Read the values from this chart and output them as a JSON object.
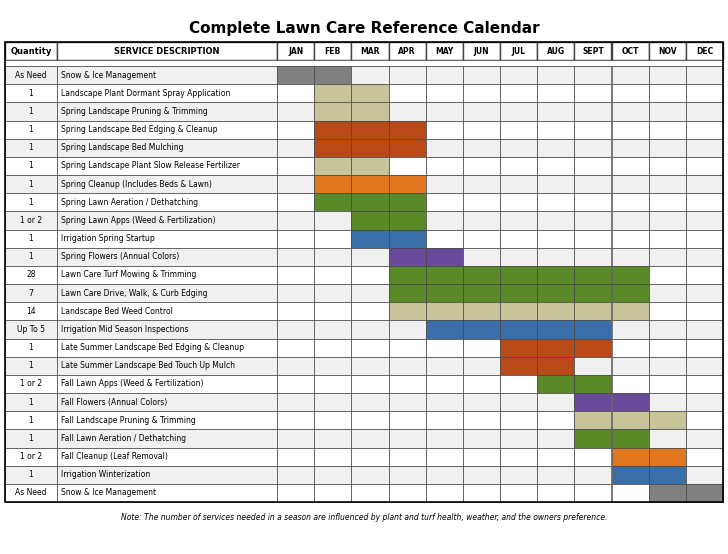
{
  "title": "Complete Lawn Care Reference Calendar",
  "note": "Note: The number of services needed in a season are influenced by plant and turf health, weather, and the owners preference.",
  "months": [
    "JAN",
    "FEB",
    "MAR",
    "APR",
    "MAY",
    "JUN",
    "JUL",
    "AUG",
    "SEPT",
    "OCT",
    "NOV",
    "DEC"
  ],
  "rows": [
    {
      "qty": "As Need",
      "desc": "Snow & Ice Management",
      "colors": {
        "JAN": "#808080",
        "FEB": "#808080"
      }
    },
    {
      "qty": "1",
      "desc": "Landscape Plant Dormant Spray Application",
      "colors": {
        "FEB": "#c8c49a",
        "MAR": "#c8c49a"
      }
    },
    {
      "qty": "1",
      "desc": "Spring Landscape Pruning & Trimming",
      "colors": {
        "FEB": "#c8c49a",
        "MAR": "#c8c49a"
      }
    },
    {
      "qty": "1",
      "desc": "Spring Landscape Bed Edging & Cleanup",
      "colors": {
        "FEB": "#b84a18",
        "MAR": "#b84a18",
        "APR": "#b84a18"
      }
    },
    {
      "qty": "1",
      "desc": "Spring Landscape Bed Mulching",
      "colors": {
        "FEB": "#b84a18",
        "MAR": "#b84a18",
        "APR": "#b84a18"
      }
    },
    {
      "qty": "1",
      "desc": "Spring Landscape Plant Slow Release Fertilizer",
      "colors": {
        "FEB": "#c8c49a",
        "MAR": "#c8c49a"
      }
    },
    {
      "qty": "1",
      "desc": "Spring Cleanup (Includes Beds & Lawn)",
      "colors": {
        "FEB": "#e07820",
        "MAR": "#e07820",
        "APR": "#e07820"
      }
    },
    {
      "qty": "1",
      "desc": "Spring Lawn Aeration / Dethatching",
      "colors": {
        "FEB": "#5a8a28",
        "MAR": "#5a8a28",
        "APR": "#5a8a28"
      }
    },
    {
      "qty": "1 or 2",
      "desc": "Spring Lawn Apps (Weed & Fertilization)",
      "colors": {
        "MAR": "#5a8a28",
        "APR": "#5a8a28"
      }
    },
    {
      "qty": "1",
      "desc": "Irrigation Spring Startup",
      "colors": {
        "MAR": "#3a6ea8",
        "APR": "#3a6ea8"
      }
    },
    {
      "qty": "1",
      "desc": "Spring Flowers (Annual Colors)",
      "colors": {
        "APR": "#6a4a9a",
        "MAY": "#6a4a9a"
      }
    },
    {
      "qty": "28",
      "desc": "Lawn Care Turf Mowing & Trimming",
      "colors": {
        "APR": "#5a8a28",
        "MAY": "#5a8a28",
        "JUN": "#5a8a28",
        "JUL": "#5a8a28",
        "AUG": "#5a8a28",
        "SEPT": "#5a8a28",
        "OCT": "#5a8a28"
      }
    },
    {
      "qty": "7",
      "desc": "Lawn Care Drive, Walk, & Curb Edging",
      "colors": {
        "APR": "#5a8a28",
        "MAY": "#5a8a28",
        "JUN": "#5a8a28",
        "JUL": "#5a8a28",
        "AUG": "#5a8a28",
        "SEPT": "#5a8a28",
        "OCT": "#5a8a28"
      }
    },
    {
      "qty": "14",
      "desc": "Landscape Bed Weed Control",
      "colors": {
        "APR": "#c8c49a",
        "MAY": "#c8c49a",
        "JUN": "#c8c49a",
        "JUL": "#c8c49a",
        "AUG": "#c8c49a",
        "SEPT": "#c8c49a",
        "OCT": "#c8c49a"
      }
    },
    {
      "qty": "Up To 5",
      "desc": "Irrigation Mid Season Inspections",
      "colors": {
        "MAY": "#3a6ea8",
        "JUN": "#3a6ea8",
        "JUL": "#3a6ea8",
        "AUG": "#3a6ea8",
        "SEPT": "#3a6ea8"
      }
    },
    {
      "qty": "1",
      "desc": "Late Summer Landscape Bed Edging & Cleanup",
      "colors": {
        "JUL": "#b84a18",
        "AUG": "#b84a18",
        "SEPT": "#b84a18"
      }
    },
    {
      "qty": "1",
      "desc": "Late Summer Landscape Bed Touch Up Mulch",
      "colors": {
        "JUL": "#b84a18",
        "AUG": "#b84a18"
      }
    },
    {
      "qty": "1 or 2",
      "desc": "Fall Lawn Apps (Weed & Fertilization)",
      "colors": {
        "AUG": "#5a8a28",
        "SEPT": "#5a8a28"
      }
    },
    {
      "qty": "1",
      "desc": "Fall Flowers (Annual Colors)",
      "colors": {
        "SEPT": "#6a4a9a",
        "OCT": "#6a4a9a"
      }
    },
    {
      "qty": "1",
      "desc": "Fall Landscape Pruning & Trimming",
      "colors": {
        "SEPT": "#c8c49a",
        "OCT": "#c8c49a",
        "NOV": "#c8c49a"
      }
    },
    {
      "qty": "1",
      "desc": "Fall Lawn Aeration / Dethatching",
      "colors": {
        "SEPT": "#5a8a28",
        "OCT": "#5a8a28"
      }
    },
    {
      "qty": "1 or 2",
      "desc": "Fall Cleanup (Leaf Removal)",
      "colors": {
        "OCT": "#e07820",
        "NOV": "#e07820"
      }
    },
    {
      "qty": "1",
      "desc": "Irrigation Winterization",
      "colors": {
        "OCT": "#3a6ea8",
        "NOV": "#3a6ea8"
      }
    },
    {
      "qty": "As Need",
      "desc": "Snow & Ice Management",
      "colors": {
        "NOV": "#808080",
        "DEC": "#808080"
      }
    }
  ],
  "border_color": "#444444",
  "row_bg_even": "#f0f0f0",
  "row_bg_odd": "#ffffff"
}
